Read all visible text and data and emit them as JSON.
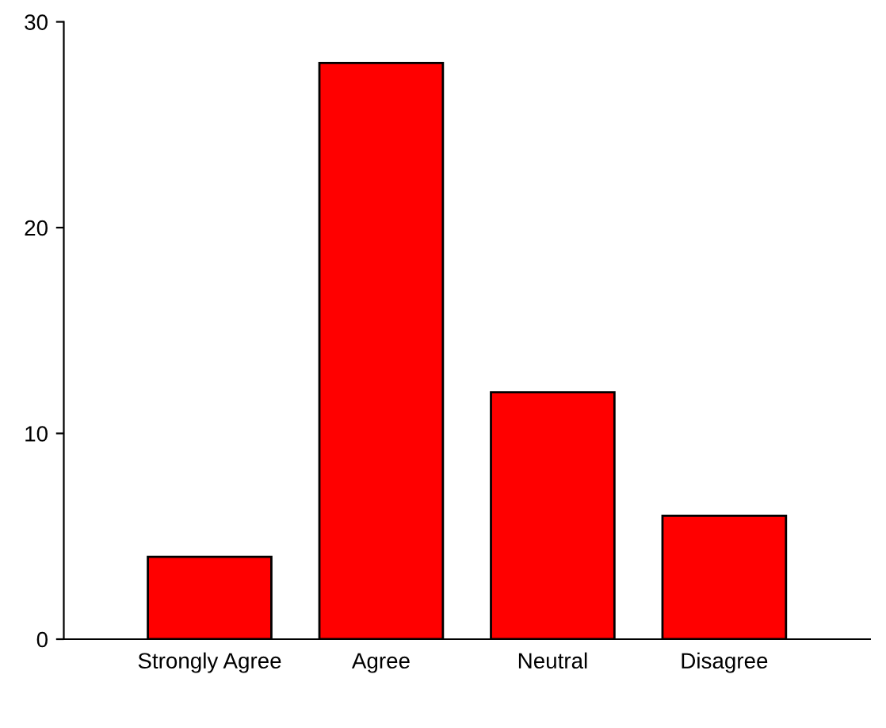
{
  "chart_data": {
    "type": "bar",
    "categories": [
      "Strongly Agree",
      "Agree",
      "Neutral",
      "Disagree"
    ],
    "values": [
      4,
      28,
      12,
      6
    ],
    "color": "#ff0000",
    "ylim": [
      0,
      30
    ],
    "yticks": [
      0,
      10,
      20,
      30
    ],
    "grid": false
  }
}
